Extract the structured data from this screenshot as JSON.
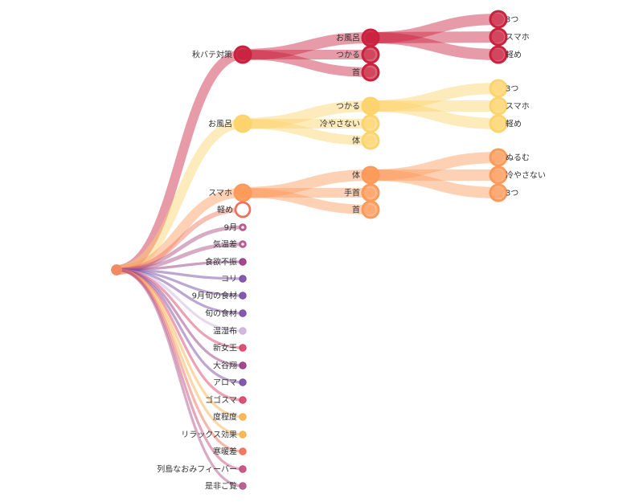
{
  "colors": {
    "root": "#ef8a62",
    "red": "#c9223e",
    "yellow": "#fdd36b",
    "orange": "#fd9a5a",
    "mauve": "#b2588b",
    "purple": "#7b4fa6",
    "lilac": "#cdb4db",
    "pink": "#d9456a",
    "plum": "#9a3f86",
    "amber": "#f9b24d",
    "coral": "#f07058",
    "rose": "#c44f80"
  },
  "tree": {
    "name": "",
    "children": [
      {
        "name": "秋バテ対策",
        "color": "red",
        "weight": 3,
        "children": [
          {
            "name": "お風呂",
            "color": "red",
            "weight": 3,
            "children": [
              {
                "name": "3つ"
              },
              {
                "name": "スマホ"
              },
              {
                "name": "軽め"
              }
            ]
          },
          {
            "name": "つかる",
            "color": "red",
            "weight": 1
          },
          {
            "name": "首",
            "color": "red",
            "weight": 1
          }
        ]
      },
      {
        "name": "お風呂",
        "color": "yellow",
        "weight": 3,
        "children": [
          {
            "name": "つかる",
            "color": "yellow",
            "weight": 3,
            "children": [
              {
                "name": "3つ"
              },
              {
                "name": "スマホ"
              },
              {
                "name": "軽め"
              }
            ]
          },
          {
            "name": "冷やさない",
            "color": "yellow",
            "weight": 1
          },
          {
            "name": "体",
            "color": "yellow",
            "weight": 1
          }
        ]
      },
      {
        "name": "スマホ",
        "color": "orange",
        "weight": 3,
        "children": [
          {
            "name": "体",
            "color": "orange",
            "weight": 3,
            "children": [
              {
                "name": "ぬるむ"
              },
              {
                "name": "冷やさない"
              },
              {
                "name": "3つ"
              }
            ]
          },
          {
            "name": "手首",
            "color": "orange",
            "weight": 1
          },
          {
            "name": "首",
            "color": "orange",
            "weight": 1
          }
        ]
      },
      {
        "name": "軽め",
        "color": "coral",
        "weight": 1.5,
        "empty": true
      },
      {
        "name": "9月",
        "color": "mauve",
        "weight": 0.6
      },
      {
        "name": "気温差",
        "color": "mauve",
        "weight": 0.6
      },
      {
        "name": "食欲不振",
        "color": "plum",
        "weight": 0.4
      },
      {
        "name": "コリ",
        "color": "purple",
        "weight": 0.4
      },
      {
        "name": "9月旬の食材",
        "color": "purple",
        "weight": 0.4
      },
      {
        "name": "旬の食材",
        "color": "purple",
        "weight": 0.4
      },
      {
        "name": "温湿布",
        "color": "lilac",
        "weight": 0.4
      },
      {
        "name": "新女王",
        "color": "pink",
        "weight": 0.4
      },
      {
        "name": "大谷翔",
        "color": "plum",
        "weight": 0.4
      },
      {
        "name": "アロマ",
        "color": "purple",
        "weight": 0.4
      },
      {
        "name": "ゴゴスマ",
        "color": "pink",
        "weight": 0.4
      },
      {
        "name": "度程度",
        "color": "amber",
        "weight": 0.4
      },
      {
        "name": "リラックス効果",
        "color": "amber",
        "weight": 0.4
      },
      {
        "name": "寒暖差",
        "color": "coral",
        "weight": 0.4
      },
      {
        "name": "列島なおみフィーバー",
        "color": "rose",
        "weight": 0.4
      },
      {
        "name": "是非ご覧",
        "color": "mauve",
        "weight": 0.4
      }
    ]
  }
}
